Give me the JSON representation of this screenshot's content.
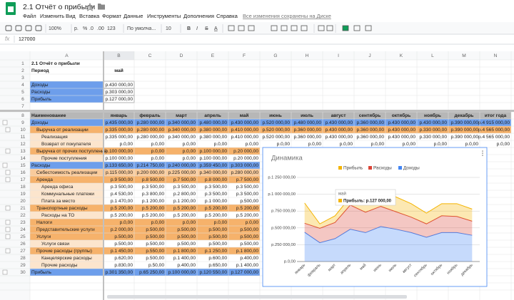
{
  "header": {
    "title": "2.1 Отчёт о прибыли",
    "menu": [
      "Файл",
      "Изменить",
      "Вид",
      "Вставка",
      "Формат",
      "Данные",
      "Инструменты",
      "Дополнения",
      "Справка"
    ],
    "saved": "Все изменения сохранены на Диске"
  },
  "toolbar": [
    "100%",
    "р.",
    "%",
    ".0",
    ".00",
    "123",
    "По умолча...",
    "10",
    "B",
    "I",
    "S",
    "A"
  ],
  "formula_bar": {
    "fx": "fx",
    "value": "127000"
  },
  "columns": [
    "A",
    "B",
    "C",
    "D",
    "E",
    "F",
    "G",
    "H",
    "I",
    "J",
    "K",
    "L",
    "M",
    "N"
  ],
  "rows": [
    {
      "n": 1,
      "bold": true,
      "cells": [
        "2.1 Отчёт о прибыли"
      ]
    },
    {
      "n": 2,
      "bold": true,
      "cells": [
        "Период",
        "май"
      ]
    },
    {
      "n": 3,
      "cells": []
    },
    {
      "n": 4,
      "fill": "#6d9eeb",
      "cells": [
        "Доходы",
        "р.430 000,00"
      ]
    },
    {
      "n": 5,
      "fill": "#6d9eeb",
      "cells": [
        "Расходы",
        "р.303 000,00"
      ]
    },
    {
      "n": 6,
      "fill": "#6d9eeb",
      "cells": [
        "Прибыль",
        "р.127 000,00"
      ]
    },
    {
      "n": 7,
      "cells": []
    },
    {
      "n": 8,
      "bold": true,
      "fill": "#b7b7b7",
      "cell_fill": "#b7b7b7",
      "cells": [
        "Наименование",
        "январь",
        "февраль",
        "март",
        "апрель",
        "май",
        "июнь",
        "июль",
        "август",
        "сентябрь",
        "октябрь",
        "ноябрь",
        "декабрь",
        "итог года"
      ]
    },
    {
      "n": 9,
      "level": 0,
      "fill": "#6d9eeb",
      "cell_fill": "#6d9eeb",
      "cells": [
        "Доходы",
        "р.435 000,00",
        "р.280 000,00",
        "р.340 000,00",
        "р.480 000,00",
        "р.430 000,00",
        "р.520 000,00",
        "р.480 000,00",
        "р.430 000,00",
        "р.360 000,00",
        "р.430 000,00",
        "р.430 000,00",
        "р.390 000,00",
        "р.4 915 000,00"
      ]
    },
    {
      "n": 10,
      "level": 1,
      "fill": "#f6b26b",
      "cell_fill": "#f6b26b",
      "cells": [
        "Выручка от реализации",
        "р.335 000,00",
        "р.280 000,00",
        "р.340 000,00",
        "р.380 000,00",
        "р.410 000,00",
        "р.520 000,00",
        "р.360 000,00",
        "р.430 000,00",
        "р.360 000,00",
        "р.430 000,00",
        "р.330 000,00",
        "р.390 000,00",
        "р.4 565 000,00"
      ]
    },
    {
      "n": 11,
      "level": 2,
      "fill": "#fce5cd",
      "cells": [
        "Реализация",
        "р.335 000,00",
        "р.280 000,00",
        "р.340 000,00",
        "р.380 000,00",
        "р.410 000,00",
        "р.520 000,00",
        "р.360 000,00",
        "р.430 000,00",
        "р.360 000,00",
        "р.430 000,00",
        "р.330 000,00",
        "р.390 000,00",
        "р.4 565 000,00"
      ]
    },
    {
      "n": 12,
      "level": 2,
      "fill": "#fce5cd",
      "cells": [
        "Возврат от покупателя",
        "р.0,00",
        "р.0,00",
        "р.0,00",
        "р.0,00",
        "р.0,00",
        "р.0,00",
        "р.0,00",
        "р.0,00",
        "р.0,00",
        "р.0,00",
        "р.0,00",
        "р.0,00",
        "р.0,00"
      ]
    },
    {
      "n": 13,
      "level": 1,
      "fill": "#f6b26b",
      "cell_fill": "#f6b26b",
      "cells": [
        "Выручка от прочих поступлений",
        "р.100 000,00",
        "р.0,00",
        "р.0,00",
        "р.100 000,00",
        "р.20 000,00"
      ]
    },
    {
      "n": 14,
      "level": 2,
      "fill": "#fce5cd",
      "cells": [
        "Прочие поступления",
        "р.100 000,00",
        "р.0,00",
        "р.0,00",
        "р.100 000,00",
        "р.20 000,00"
      ]
    },
    {
      "n": 15,
      "level": 0,
      "fill": "#6d9eeb",
      "cell_fill": "#6d9eeb",
      "cells": [
        "Расходы",
        "р.133 650,00",
        "р.214 750,00",
        "р.240 000,00",
        "р.359 450,00",
        "р.303 000,00"
      ]
    },
    {
      "n": 16,
      "level": 1,
      "fill": "#f9cb9c",
      "cell_fill": "#f9cb9c",
      "cells": [
        "Себестоимость реализации",
        "р.115 000,00",
        "р.200 000,00",
        "р.225 000,00",
        "р.340 000,00",
        "р.280 000,00"
      ]
    },
    {
      "n": 17,
      "level": 1,
      "fill": "#f6b26b",
      "cell_fill": "#f6b26b",
      "cells": [
        "Аренда",
        "р.9 500,00",
        "р.8 500,00",
        "р.7 500,00",
        "р.8 000,00",
        "р.7 500,00"
      ]
    },
    {
      "n": 18,
      "level": 2,
      "fill": "#fce5cd",
      "cells": [
        "Аренда офиса",
        "р.3 500,00",
        "р.3 500,00",
        "р.3 500,00",
        "р.3 500,00",
        "р.3 500,00"
      ]
    },
    {
      "n": 19,
      "level": 2,
      "fill": "#fce5cd",
      "cells": [
        "Коммунальные платежи",
        "р.4 530,00",
        "р.3 800,00",
        "р.2 800,00",
        "р.3 500,00",
        "р.3 500,00"
      ]
    },
    {
      "n": 20,
      "level": 2,
      "fill": "#fce5cd",
      "cells": [
        "Плата за место",
        "р.1 470,00",
        "р.1 200,00",
        "р.1 200,00",
        "р.1 000,00",
        "р.500,00"
      ]
    },
    {
      "n": 21,
      "level": 1,
      "fill": "#f6b26b",
      "cell_fill": "#f6b26b",
      "cells": [
        "Транспортные расходы",
        "р.5 200,00",
        "р.5 200,00",
        "р.5 200,00",
        "р.5 200,00",
        "р.5 200,00"
      ]
    },
    {
      "n": 22,
      "level": 2,
      "fill": "#fce5cd",
      "cells": [
        "Расходы на ТО",
        "р.5 200,00",
        "р.5 200,00",
        "р.5 200,00",
        "р.5 200,00",
        "р.5 200,00"
      ]
    },
    {
      "n": 23,
      "level": 1,
      "fill": "#f6b26b",
      "cell_fill": "#f6b26b",
      "cells": [
        "Налоги",
        "р.0,00",
        "р.0,00",
        "р.0,00",
        "р.0,00",
        "р.0,00"
      ]
    },
    {
      "n": 24,
      "level": 1,
      "fill": "#f6b26b",
      "cell_fill": "#f6b26b",
      "cells": [
        "Представительские услуги",
        "р.2 000,00",
        "р.500,00",
        "р.500,00",
        "р.500,00",
        "р.500,00"
      ]
    },
    {
      "n": 25,
      "level": 1,
      "fill": "#f6b26b",
      "cell_fill": "#f6b26b",
      "cells": [
        "Услуги",
        "р.500,00",
        "р.500,00",
        "р.500,00",
        "р.500,00",
        "р.500,00"
      ]
    },
    {
      "n": 26,
      "level": 2,
      "fill": "#fce5cd",
      "cells": [
        "Услуги связи",
        "р.500,00",
        "р.500,00",
        "р.500,00",
        "р.500,00",
        "р.500,00"
      ]
    },
    {
      "n": 27,
      "level": 1,
      "fill": "#f6b26b",
      "cell_fill": "#f6b26b",
      "cells": [
        "Прочие расходы (группы)",
        "р.1 450,00",
        "р.550,00",
        "р.1 800,00",
        "р.1 250,00",
        "р.1 800,00"
      ]
    },
    {
      "n": 28,
      "level": 2,
      "fill": "#fce5cd",
      "cells": [
        "Канцелярские расходы",
        "р.620,00",
        "р.500,00",
        "р.1 400,00",
        "р.600,00",
        "р.400,00"
      ]
    },
    {
      "n": 29,
      "level": 2,
      "fill": "#fce5cd",
      "cells": [
        "Прочие расходы",
        "р.830,00",
        "р.50,00",
        "р.400,00",
        "р.650,00",
        "р.1 400,00"
      ]
    },
    {
      "n": 30,
      "level": 0,
      "fill": "#6d9eeb",
      "cell_fill": "#6d9eeb",
      "cells": [
        "Прибыль",
        "р.301 350,00",
        "р.65 250,00",
        "р.100 000,00",
        "р.120 550,00",
        "р.127 000,00"
      ]
    }
  ],
  "chart_data": {
    "type": "area",
    "stacked": true,
    "title": "Динамика",
    "categories": [
      "январь",
      "февраль",
      "март",
      "апрель",
      "май",
      "июнь",
      "июль",
      "август",
      "сентябрь",
      "октябрь",
      "ноябрь",
      "декабрь"
    ],
    "series": [
      {
        "name": "Прибыль",
        "color": "#f4b400",
        "values": [
          301350,
          65250,
          100000,
          120550,
          127000,
          220000,
          220000,
          200000,
          160000,
          180000,
          190000,
          180000
        ]
      },
      {
        "name": "Расходы",
        "color": "#db4437",
        "values": [
          133650,
          214750,
          240000,
          359450,
          303000,
          300000,
          260000,
          230000,
          200000,
          250000,
          240000,
          210000
        ]
      },
      {
        "name": "Доходы",
        "color": "#4285f4",
        "values": [
          435000,
          280000,
          340000,
          480000,
          430000,
          520000,
          480000,
          430000,
          360000,
          430000,
          430000,
          390000
        ]
      }
    ],
    "ylim": [
      0,
      1250000
    ],
    "yticks": [
      {
        "value": 0,
        "label": "р.0,00"
      },
      {
        "value": 250000,
        "label": "р.250 000,00"
      },
      {
        "value": 500000,
        "label": "р.500 000,00"
      },
      {
        "value": 750000,
        "label": "р.750 000,00"
      },
      {
        "value": 1000000,
        "label": "р.1 000 000,00"
      },
      {
        "value": 1250000,
        "label": "р.1 250 000,00"
      }
    ],
    "grid": true,
    "tooltip": {
      "title": "май",
      "text": "Прибыль: р.127 000,00"
    }
  }
}
